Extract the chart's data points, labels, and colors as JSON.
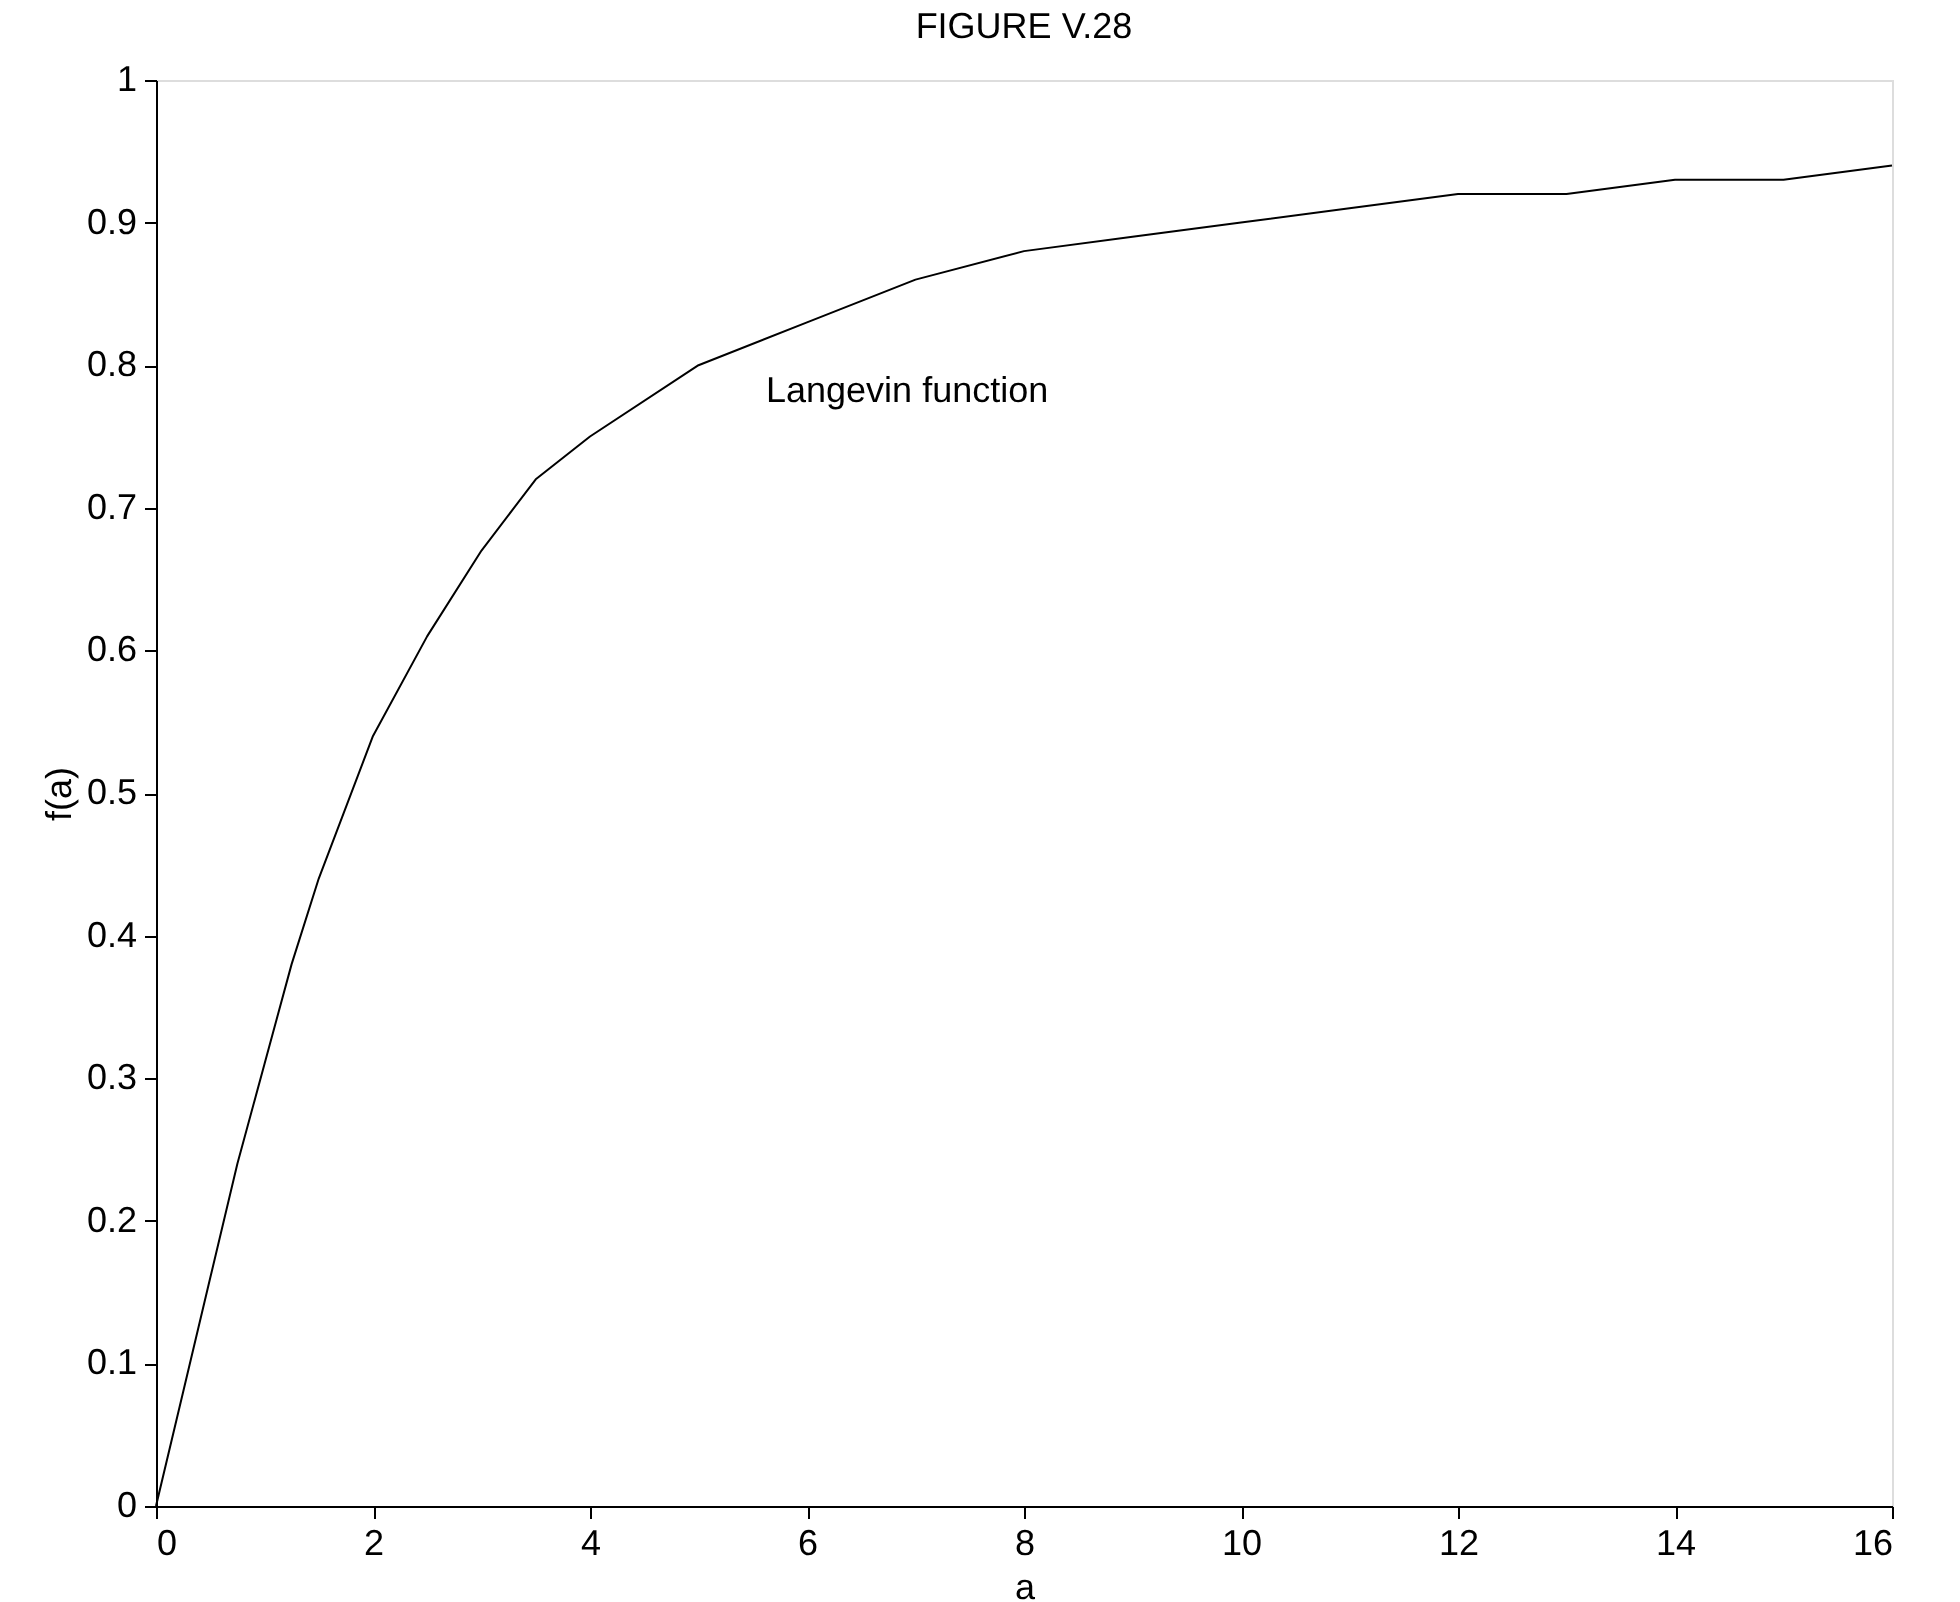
{
  "chart_data": {
    "type": "line",
    "title": "FIGURE V.28",
    "xlabel": "a",
    "ylabel": "f(a)",
    "x": [
      0,
      0.25,
      0.5,
      0.75,
      1,
      1.25,
      1.5,
      2,
      2.5,
      3,
      3.5,
      4,
      5,
      6,
      7,
      8,
      9,
      10,
      11,
      12,
      13,
      14,
      15,
      16
    ],
    "series": [
      {
        "color": "#000000",
        "values": [
          0,
          0.08,
          0.16,
          0.24,
          0.31,
          0.38,
          0.44,
          0.54,
          0.61,
          0.67,
          0.72,
          0.75,
          0.8,
          0.83,
          0.86,
          0.88,
          0.89,
          0.9,
          0.91,
          0.92,
          0.92,
          0.93,
          0.93,
          0.94
        ]
      }
    ],
    "xlim": [
      0,
      16
    ],
    "xticks": [
      0,
      2,
      4,
      6,
      8,
      10,
      12,
      14,
      16
    ],
    "ylim": [
      0,
      1
    ],
    "yticks": [
      0,
      0.1,
      0.2,
      0.3,
      0.4,
      0.5,
      0.6,
      0.7,
      0.8,
      0.9,
      1
    ],
    "annotations": [
      "Langevin function"
    ],
    "grid": false,
    "line_style": "solid",
    "marker": "none"
  }
}
